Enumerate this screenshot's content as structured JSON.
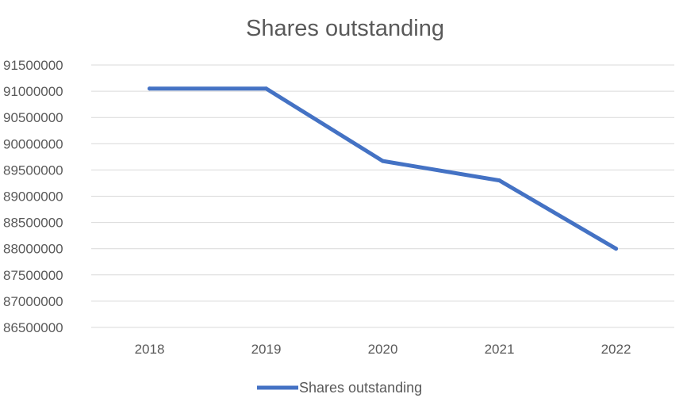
{
  "chart_data": {
    "type": "line",
    "title": "Shares outstanding",
    "xlabel": "",
    "ylabel": "",
    "categories": [
      "2018",
      "2019",
      "2020",
      "2021",
      "2022"
    ],
    "series": [
      {
        "name": "Shares outstanding",
        "values": [
          91050000,
          91050000,
          89670000,
          89300000,
          88000000
        ]
      }
    ],
    "ylim": [
      86500000,
      91500000
    ],
    "y_ticks": [
      "86500000",
      "87000000",
      "87500000",
      "88000000",
      "88500000",
      "89000000",
      "89500000",
      "90000000",
      "90500000",
      "91000000",
      "91500000"
    ],
    "grid": true,
    "legend_position": "bottom",
    "colors": {
      "series": "#4472c4",
      "grid": "#d9d9d9",
      "text": "#595959"
    }
  }
}
